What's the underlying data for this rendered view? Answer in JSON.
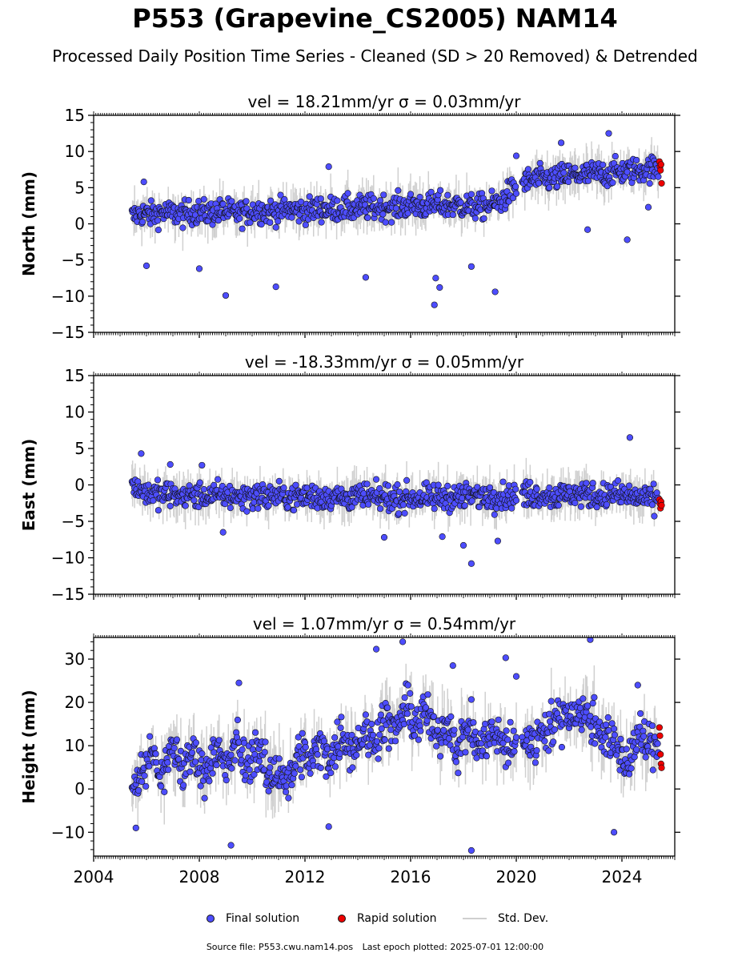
{
  "title": "P553 (Grapevine_CS2005) NAM14",
  "subtitle": "Processed Daily Position Time Series - Cleaned (SD > 20 Removed) & Detrended",
  "colors": {
    "final": "#4d4dff",
    "rapid": "#ee0000",
    "stddev": "#d0d0d0",
    "edge": "#111111"
  },
  "chart_data": [
    {
      "type": "scatter",
      "panel": "north",
      "title": "vel = 18.21mm/yr   σ = 0.03mm/yr",
      "ylabel": "North (mm)",
      "xlim": [
        2004,
        2026
      ],
      "ylim": [
        -15,
        15
      ],
      "yticks": [
        -15,
        -10,
        -5,
        0,
        5,
        10,
        15
      ],
      "ytick_labels": [
        "−15",
        "−10",
        "−5",
        "0",
        "5",
        "10",
        "15"
      ],
      "xtick_labels": [],
      "grid": false,
      "series": [
        {
          "name": "Final solution",
          "x": [
            2005.5,
            2005.8,
            2006.2,
            2006.6,
            2007.0,
            2007.4,
            2007.8,
            2008.2,
            2008.6,
            2009.0,
            2009.4,
            2009.8,
            2010.2,
            2010.6,
            2011.0,
            2011.4,
            2011.8,
            2012.2,
            2012.6,
            2013.0,
            2013.4,
            2013.8,
            2014.2,
            2014.6,
            2015.0,
            2015.4,
            2015.8,
            2016.2,
            2016.6,
            2017.0,
            2017.4,
            2017.8,
            2018.2,
            2018.6,
            2019.0,
            2019.4,
            2019.8,
            2020.3,
            2020.6,
            2021.0,
            2021.4,
            2021.8,
            2022.2,
            2022.6,
            2023.0,
            2023.4,
            2023.8,
            2024.2,
            2024.6,
            2025.0
          ],
          "y": [
            1.0,
            1.5,
            1.2,
            1.6,
            1.4,
            1.3,
            1.7,
            1.5,
            1.6,
            1.8,
            1.4,
            1.6,
            1.9,
            1.7,
            1.8,
            2.0,
            1.8,
            1.9,
            2.1,
            2.0,
            2.2,
            2.0,
            2.3,
            2.2,
            2.4,
            2.3,
            2.5,
            2.6,
            2.4,
            2.7,
            2.5,
            2.6,
            2.4,
            2.3,
            2.6,
            3.0,
            4.5,
            5.8,
            6.0,
            6.3,
            6.2,
            6.6,
            6.8,
            6.7,
            7.0,
            6.9,
            7.2,
            7.3,
            7.4,
            7.6
          ]
        },
        {
          "name": "Rapid solution",
          "x": [
            2025.42,
            2025.44,
            2025.46,
            2025.48,
            2025.5
          ],
          "y": [
            8.6,
            7.9,
            7.4,
            8.2,
            5.6
          ]
        }
      ],
      "outliers": {
        "x": [
          2005.9,
          2006.0,
          2008.0,
          2009.0,
          2010.9,
          2012.9,
          2014.3,
          2016.9,
          2016.95,
          2017.1,
          2018.3,
          2019.2,
          2020.0,
          2021.7,
          2022.7,
          2023.5,
          2024.2,
          2025.0
        ],
        "y": [
          5.8,
          -5.8,
          -6.2,
          -9.9,
          -8.7,
          7.9,
          -7.4,
          -11.2,
          -7.5,
          -8.8,
          -5.9,
          -9.4,
          9.4,
          11.2,
          -0.8,
          12.5,
          -2.2,
          2.3
        ]
      }
    },
    {
      "type": "scatter",
      "panel": "east",
      "title": "vel = -18.33mm/yr   σ = 0.05mm/yr",
      "ylabel": "East (mm)",
      "xlim": [
        2004,
        2026
      ],
      "ylim": [
        -15,
        15
      ],
      "yticks": [
        -15,
        -10,
        -5,
        0,
        5,
        10,
        15
      ],
      "ytick_labels": [
        "−15",
        "−10",
        "−5",
        "0",
        "5",
        "10",
        "15"
      ],
      "xtick_labels": [],
      "grid": false,
      "series": [
        {
          "name": "Final solution",
          "x": [
            2005.5,
            2005.8,
            2006.2,
            2006.6,
            2007.0,
            2007.4,
            2007.8,
            2008.2,
            2008.6,
            2009.0,
            2009.4,
            2009.8,
            2010.2,
            2010.6,
            2011.0,
            2011.4,
            2011.8,
            2012.2,
            2012.6,
            2013.0,
            2013.4,
            2013.8,
            2014.2,
            2014.6,
            2015.0,
            2015.4,
            2015.8,
            2016.2,
            2016.6,
            2017.0,
            2017.4,
            2017.8,
            2018.2,
            2018.6,
            2019.0,
            2019.4,
            2019.8,
            2020.3,
            2020.6,
            2021.0,
            2021.4,
            2021.8,
            2022.2,
            2022.6,
            2023.0,
            2023.4,
            2023.8,
            2024.2,
            2024.6,
            2025.0
          ],
          "y": [
            0.2,
            -0.8,
            -1.2,
            -1.4,
            -1.3,
            -1.5,
            -1.4,
            -1.6,
            -1.5,
            -1.4,
            -1.6,
            -1.5,
            -1.4,
            -1.6,
            -1.5,
            -1.7,
            -1.6,
            -1.5,
            -1.7,
            -1.6,
            -1.8,
            -1.7,
            -1.6,
            -1.8,
            -1.7,
            -1.9,
            -1.8,
            -1.7,
            -1.9,
            -1.8,
            -1.6,
            -1.7,
            -1.5,
            -1.6,
            -1.4,
            -1.5,
            -1.6,
            -1.2,
            -1.4,
            -1.3,
            -1.5,
            -1.4,
            -1.2,
            -1.3,
            -1.5,
            -1.4,
            -1.3,
            -1.5,
            -1.8,
            -2.0
          ]
        },
        {
          "name": "Rapid solution",
          "x": [
            2025.42,
            2025.44,
            2025.46,
            2025.48,
            2025.5
          ],
          "y": [
            -2.0,
            -2.6,
            -3.2,
            -2.3,
            -2.8
          ]
        }
      ],
      "outliers": {
        "x": [
          2005.8,
          2006.9,
          2008.1,
          2008.9,
          2015.0,
          2017.2,
          2018.0,
          2018.3,
          2019.3,
          2024.3
        ],
        "y": [
          4.3,
          2.8,
          2.7,
          -6.5,
          -7.2,
          -7.1,
          -8.3,
          -10.8,
          -7.7,
          6.5
        ]
      }
    },
    {
      "type": "scatter",
      "panel": "height",
      "title": "vel = 1.07mm/yr   σ = 0.54mm/yr",
      "ylabel": "Height (mm)",
      "xlim": [
        2004,
        2026
      ],
      "ylim": [
        -15.5,
        35
      ],
      "yticks": [
        -10,
        0,
        10,
        20,
        30
      ],
      "ytick_labels": [
        "−10",
        "0",
        "10",
        "20",
        "30"
      ],
      "xticks": [
        2004,
        2008,
        2012,
        2016,
        2020,
        2024
      ],
      "xtick_labels": [
        "2004",
        "2008",
        "2012",
        "2016",
        "2020",
        "2024"
      ],
      "grid": false,
      "series": [
        {
          "name": "Final solution",
          "x": [
            2005.5,
            2005.8,
            2006.2,
            2006.6,
            2007.0,
            2007.4,
            2007.8,
            2008.2,
            2008.6,
            2009.0,
            2009.4,
            2009.8,
            2010.2,
            2010.6,
            2011.0,
            2011.4,
            2011.8,
            2012.2,
            2012.6,
            2013.0,
            2013.4,
            2013.8,
            2014.2,
            2014.6,
            2015.0,
            2015.4,
            2015.8,
            2016.2,
            2016.6,
            2017.0,
            2017.4,
            2017.8,
            2018.2,
            2018.6,
            2019.0,
            2019.4,
            2019.8,
            2020.3,
            2020.6,
            2021.0,
            2021.4,
            2021.8,
            2022.2,
            2022.6,
            2023.0,
            2023.4,
            2023.8,
            2024.2,
            2024.6,
            2025.0
          ],
          "y": [
            0.0,
            3.0,
            9.0,
            2.0,
            10.0,
            4.0,
            9.0,
            3.0,
            10.0,
            4.0,
            11.0,
            5.0,
            10.0,
            2.0,
            5.0,
            1.0,
            9.0,
            6.0,
            10.0,
            7.0,
            13.0,
            9.0,
            13.0,
            11.0,
            16.0,
            13.0,
            19.0,
            15.0,
            18.0,
            11.0,
            16.0,
            9.0,
            15.0,
            9.0,
            13.0,
            11.0,
            9.0,
            12.0,
            10.0,
            14.0,
            15.0,
            17.0,
            18.0,
            17.0,
            15.0,
            12.0,
            9.0,
            6.0,
            12.0,
            10.0
          ]
        },
        {
          "name": "Rapid solution",
          "x": [
            2025.42,
            2025.44,
            2025.46,
            2025.48,
            2025.5
          ],
          "y": [
            14.2,
            12.3,
            8.0,
            5.8,
            4.9
          ]
        }
      ],
      "outliers": {
        "x": [
          2005.6,
          2009.2,
          2009.5,
          2012.9,
          2014.7,
          2015.7,
          2017.6,
          2018.3,
          2019.6,
          2020.0,
          2022.8,
          2023.7,
          2024.6
        ],
        "y": [
          -9.0,
          -13.0,
          24.5,
          -8.7,
          32.3,
          34.0,
          28.5,
          -14.2,
          30.3,
          26.0,
          34.5,
          -10.0,
          24.0
        ]
      }
    }
  ],
  "legend": {
    "final_label": "Final solution",
    "rapid_label": "Rapid solution",
    "stddev_label": "Std. Dev.",
    "placement": "bottom-center"
  },
  "footer": {
    "source": "Source file: P553.cwu.nam14.pos",
    "last_epoch": "Last epoch plotted: 2025-07-01 12:00:00"
  }
}
